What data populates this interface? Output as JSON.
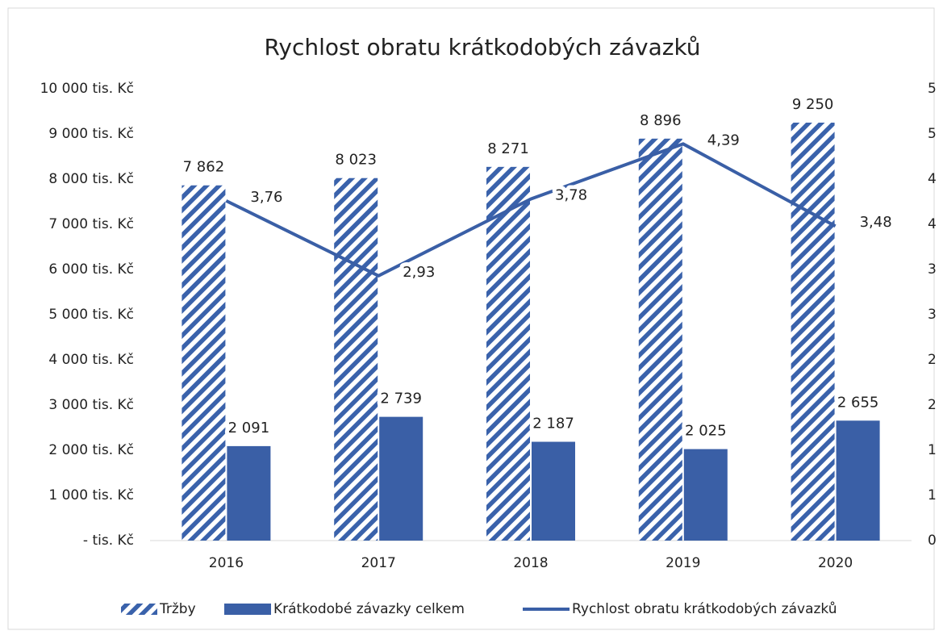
{
  "chart_data": {
    "type": "bar-line",
    "title": "Rychlost obratu krátkodobých závazků",
    "categories": [
      "2016",
      "2017",
      "2018",
      "2019",
      "2020"
    ],
    "series": [
      {
        "name": "Tržby",
        "type": "bar",
        "pattern": "hatch",
        "color": "#3a62ab",
        "values": [
          7862,
          8023,
          8271,
          8896,
          9250
        ],
        "value_labels": [
          "7 862",
          "8 023",
          "8 271",
          "8 896",
          "9 250"
        ]
      },
      {
        "name": "Krátkodobé závazky celkem",
        "type": "bar",
        "color": "#3a5fa6",
        "values": [
          2091,
          2739,
          2187,
          2025,
          2655
        ],
        "value_labels": [
          "2 091",
          "2 739",
          "2 187",
          "2 025",
          "2 655"
        ]
      },
      {
        "name": "Rychlost obratu krátkodobých závazků",
        "type": "line",
        "axis": "y2",
        "color": "#3a5fa6",
        "values": [
          3.76,
          2.93,
          3.78,
          4.39,
          3.48
        ],
        "value_labels": [
          "3,76",
          "2,93",
          "3,78",
          "4,39",
          "3,48"
        ]
      }
    ],
    "ylim": [
      0,
      10000
    ],
    "yticks": [
      {
        "value": 0,
        "label": "- tis. Kč"
      },
      {
        "value": 1000,
        "label": "1 000 tis. Kč"
      },
      {
        "value": 2000,
        "label": "2 000 tis. Kč"
      },
      {
        "value": 3000,
        "label": "3 000 tis. Kč"
      },
      {
        "value": 4000,
        "label": "4 000 tis. Kč"
      },
      {
        "value": 5000,
        "label": "5 000 tis. Kč"
      },
      {
        "value": 6000,
        "label": "6 000 tis. Kč"
      },
      {
        "value": 7000,
        "label": "7 000 tis. Kč"
      },
      {
        "value": 8000,
        "label": "8 000 tis. Kč"
      },
      {
        "value": 9000,
        "label": "9 000 tis. Kč"
      },
      {
        "value": 10000,
        "label": "10 000 tis. Kč"
      }
    ],
    "y2lim": [
      0,
      5
    ],
    "y2ticks": [
      0,
      {
        "value": 0.5,
        "label": "1"
      },
      1,
      {
        "value": 1.5,
        "label": "2"
      },
      2,
      {
        "value": 2.5,
        "label": "3"
      },
      3,
      {
        "value": 3.5,
        "label": "4"
      },
      4,
      {
        "value": 4.5,
        "label": "5"
      },
      5
    ],
    "grid": false,
    "legend": "bottom"
  }
}
